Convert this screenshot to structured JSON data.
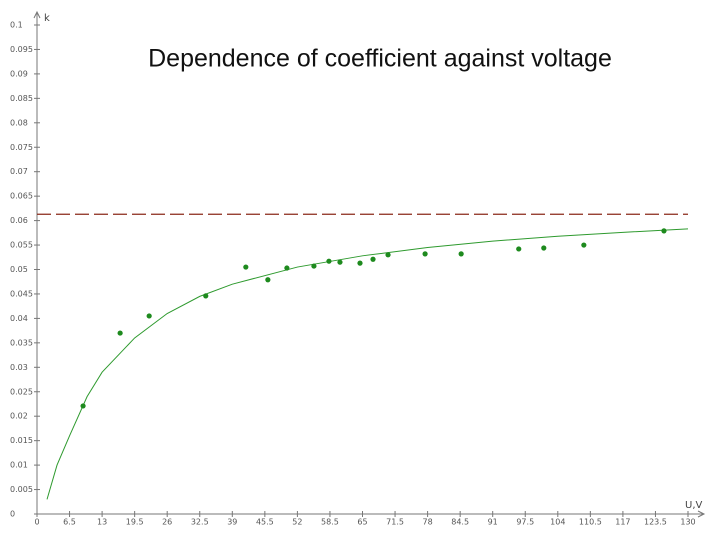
{
  "chart_data": {
    "type": "scatter",
    "title": "Dependence of  coefficient against voltage",
    "x_label": "U,V",
    "y_label": "k",
    "xlim": [
      0,
      130
    ],
    "ylim": [
      0,
      0.1
    ],
    "xticks": [
      0,
      6.5,
      13,
      19.5,
      26,
      32.5,
      39,
      45.5,
      52,
      58.5,
      65,
      71.5,
      78,
      84.5,
      91,
      97.5,
      104,
      110.5,
      117,
      123.5,
      130
    ],
    "yticks": [
      0,
      0.005,
      0.01,
      0.015,
      0.02,
      0.025,
      0.03,
      0.035,
      0.04,
      0.045,
      0.05,
      0.055,
      0.06,
      0.065,
      0.07,
      0.075,
      0.08,
      0.085,
      0.09,
      0.095,
      0.1
    ],
    "points": {
      "color": "#1e8a1e",
      "x": [
        9.2,
        16.6,
        22.4,
        33.7,
        41.7,
        46.1,
        49.9,
        55.3,
        58.3,
        60.5,
        64.5,
        67.1,
        70.1,
        77.5,
        84.7,
        96.2,
        101.2,
        109.2,
        125.2
      ],
      "values": [
        0.0221,
        0.037,
        0.0405,
        0.0446,
        0.0505,
        0.0479,
        0.0503,
        0.0507,
        0.0517,
        0.0515,
        0.0513,
        0.0521,
        0.053,
        0.0532,
        0.0532,
        0.0542,
        0.0544,
        0.055,
        0.0579
      ]
    },
    "fit": {
      "color": "#2e9a2e",
      "x": [
        2,
        4,
        6.5,
        10,
        13,
        19.5,
        26,
        32.5,
        39,
        52,
        65,
        78,
        91,
        104,
        117,
        130
      ],
      "values": [
        0.003,
        0.01,
        0.016,
        0.024,
        0.029,
        0.036,
        0.041,
        0.0445,
        0.047,
        0.0505,
        0.0528,
        0.0545,
        0.0558,
        0.0568,
        0.0576,
        0.0583
      ]
    },
    "reference_line": {
      "value": 0.0613,
      "color": "#8b2a1a"
    }
  }
}
